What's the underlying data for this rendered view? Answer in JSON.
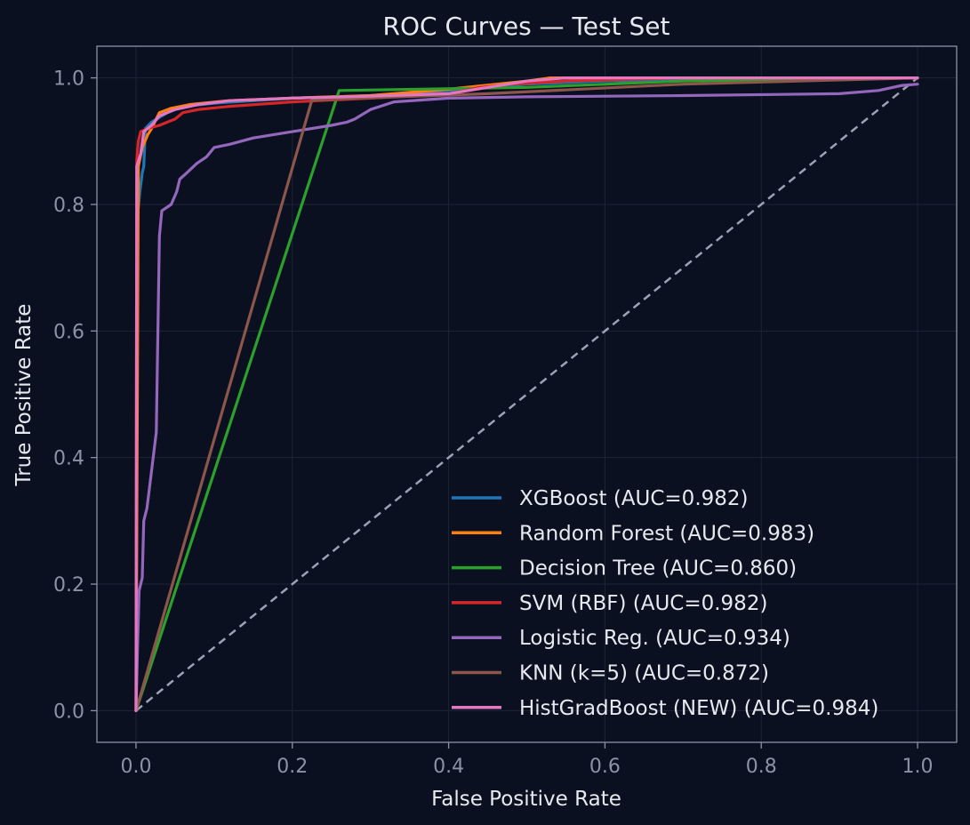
{
  "chart_data": {
    "type": "line",
    "title": "ROC Curves — Test Set",
    "xlabel": "False Positive Rate",
    "ylabel": "True Positive Rate",
    "xlim": [
      -0.05,
      1.05
    ],
    "ylim": [
      -0.05,
      1.05
    ],
    "xticks": [
      "0.0",
      "0.2",
      "0.4",
      "0.6",
      "0.8",
      "1.0"
    ],
    "yticks": [
      "0.0",
      "0.2",
      "0.4",
      "0.6",
      "0.8",
      "1.0"
    ],
    "grid": true,
    "legend_position": "lower-right",
    "diagonal": {
      "x": [
        0,
        1
      ],
      "y": [
        0,
        1
      ],
      "style": "dashed",
      "color": "#9aa3b5"
    },
    "series": [
      {
        "name": "XGBoost (AUC=0.982)",
        "color": "#1f77b4",
        "points": [
          [
            0,
            0
          ],
          [
            0.002,
            0.78
          ],
          [
            0.005,
            0.82
          ],
          [
            0.008,
            0.85
          ],
          [
            0.01,
            0.86
          ],
          [
            0.012,
            0.92
          ],
          [
            0.02,
            0.93
          ],
          [
            0.04,
            0.945
          ],
          [
            0.06,
            0.955
          ],
          [
            0.1,
            0.96
          ],
          [
            0.2,
            0.968
          ],
          [
            0.3,
            0.972
          ],
          [
            0.4,
            0.98
          ],
          [
            0.5,
            0.99
          ],
          [
            0.6,
            0.995
          ],
          [
            0.8,
            0.998
          ],
          [
            1,
            1
          ]
        ]
      },
      {
        "name": "Random Forest (AUC=0.983)",
        "color": "#ff7f0e",
        "points": [
          [
            0,
            0
          ],
          [
            0.003,
            0.86
          ],
          [
            0.008,
            0.89
          ],
          [
            0.015,
            0.91
          ],
          [
            0.02,
            0.92
          ],
          [
            0.03,
            0.945
          ],
          [
            0.045,
            0.952
          ],
          [
            0.07,
            0.958
          ],
          [
            0.12,
            0.964
          ],
          [
            0.2,
            0.968
          ],
          [
            0.3,
            0.972
          ],
          [
            0.4,
            0.982
          ],
          [
            0.5,
            0.995
          ],
          [
            0.53,
            1.0
          ],
          [
            1,
            1
          ]
        ]
      },
      {
        "name": "Decision Tree (AUC=0.860)",
        "color": "#2ca02c",
        "points": [
          [
            0,
            0
          ],
          [
            0.26,
            0.98
          ],
          [
            0.5,
            0.985
          ],
          [
            0.7,
            0.995
          ],
          [
            1,
            1
          ]
        ]
      },
      {
        "name": "SVM (RBF) (AUC=0.982)",
        "color": "#d62728",
        "points": [
          [
            0,
            0
          ],
          [
            0.001,
            0.87
          ],
          [
            0.003,
            0.9
          ],
          [
            0.006,
            0.915
          ],
          [
            0.015,
            0.92
          ],
          [
            0.03,
            0.925
          ],
          [
            0.05,
            0.935
          ],
          [
            0.06,
            0.945
          ],
          [
            0.08,
            0.95
          ],
          [
            0.12,
            0.955
          ],
          [
            0.2,
            0.962
          ],
          [
            0.3,
            0.968
          ],
          [
            0.4,
            0.975
          ],
          [
            0.44,
            0.985
          ],
          [
            0.48,
            0.99
          ],
          [
            0.55,
            0.995
          ],
          [
            0.7,
            1.0
          ],
          [
            1,
            1
          ]
        ]
      },
      {
        "name": "Logistic Reg. (AUC=0.934)",
        "color": "#9467bd",
        "points": [
          [
            0,
            0
          ],
          [
            0.002,
            0.1
          ],
          [
            0.004,
            0.19
          ],
          [
            0.008,
            0.21
          ],
          [
            0.01,
            0.3
          ],
          [
            0.014,
            0.32
          ],
          [
            0.018,
            0.36
          ],
          [
            0.022,
            0.4
          ],
          [
            0.026,
            0.44
          ],
          [
            0.028,
            0.6
          ],
          [
            0.03,
            0.75
          ],
          [
            0.033,
            0.79
          ],
          [
            0.045,
            0.8
          ],
          [
            0.052,
            0.82
          ],
          [
            0.056,
            0.84
          ],
          [
            0.065,
            0.85
          ],
          [
            0.078,
            0.865
          ],
          [
            0.09,
            0.875
          ],
          [
            0.1,
            0.89
          ],
          [
            0.12,
            0.895
          ],
          [
            0.15,
            0.905
          ],
          [
            0.2,
            0.915
          ],
          [
            0.25,
            0.925
          ],
          [
            0.27,
            0.93
          ],
          [
            0.28,
            0.935
          ],
          [
            0.3,
            0.95
          ],
          [
            0.33,
            0.962
          ],
          [
            0.4,
            0.968
          ],
          [
            0.5,
            0.97
          ],
          [
            0.7,
            0.972
          ],
          [
            0.9,
            0.975
          ],
          [
            0.95,
            0.98
          ],
          [
            0.98,
            0.988
          ],
          [
            1,
            0.99
          ]
        ]
      },
      {
        "name": "KNN (k=5) (AUC=0.872)",
        "color": "#8c564b",
        "points": [
          [
            0,
            0
          ],
          [
            0.225,
            0.965
          ],
          [
            0.45,
            0.975
          ],
          [
            0.7,
            0.99
          ],
          [
            1,
            1
          ]
        ]
      },
      {
        "name": "HistGradBoost (NEW) (AUC=0.984)",
        "color": "#e377c2",
        "points": [
          [
            0,
            0
          ],
          [
            0.001,
            0.86
          ],
          [
            0.006,
            0.88
          ],
          [
            0.01,
            0.915
          ],
          [
            0.02,
            0.925
          ],
          [
            0.03,
            0.94
          ],
          [
            0.05,
            0.95
          ],
          [
            0.08,
            0.958
          ],
          [
            0.12,
            0.964
          ],
          [
            0.2,
            0.968
          ],
          [
            0.3,
            0.971
          ],
          [
            0.4,
            0.975
          ],
          [
            0.45,
            0.985
          ],
          [
            0.5,
            0.995
          ],
          [
            0.55,
            1.0
          ],
          [
            1,
            1
          ]
        ]
      }
    ]
  }
}
